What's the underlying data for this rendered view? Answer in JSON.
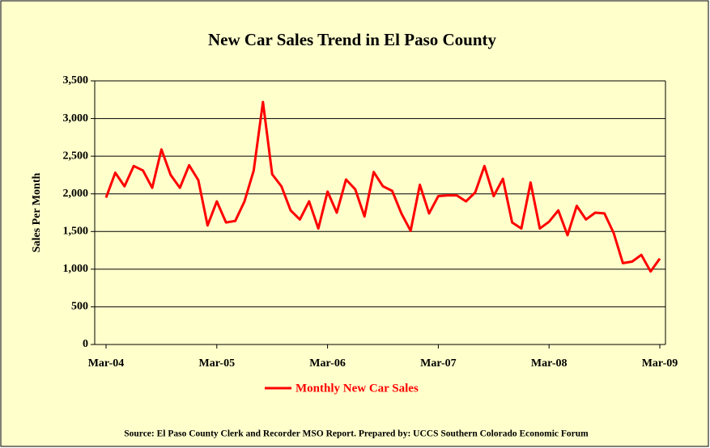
{
  "chart_data": {
    "type": "line",
    "title": "New Car Sales Trend in El Paso County",
    "y_label": "Sales Per Month",
    "source": "Source: El Paso County Clerk and Recorder MSO Report.  Prepared by: UCCS Southern Colorado Economic Forum",
    "categories": [
      "Mar-04",
      null,
      null,
      null,
      null,
      null,
      null,
      null,
      null,
      null,
      null,
      null,
      "Mar-05",
      null,
      null,
      null,
      null,
      null,
      null,
      null,
      null,
      null,
      null,
      null,
      "Mar-06",
      null,
      null,
      null,
      null,
      null,
      null,
      null,
      null,
      null,
      null,
      null,
      "Mar-07",
      null,
      null,
      null,
      null,
      null,
      null,
      null,
      null,
      null,
      null,
      null,
      "Mar-08",
      null,
      null,
      null,
      null,
      null,
      null,
      null,
      null,
      null,
      null,
      null,
      "Mar-09"
    ],
    "series": [
      {
        "name": "Monthly New Car Sales",
        "color": "#ff0000",
        "values": [
          1950,
          2280,
          2100,
          2370,
          2310,
          2080,
          2590,
          2250,
          2080,
          2380,
          2180,
          1580,
          1900,
          1620,
          1640,
          1900,
          2310,
          3220,
          2260,
          2100,
          1780,
          1660,
          1900,
          1540,
          2030,
          1750,
          2190,
          2060,
          1700,
          2290,
          2100,
          2040,
          1740,
          1510,
          2120,
          1740,
          1970,
          1980,
          1980,
          1900,
          2020,
          2370,
          1970,
          2200,
          1620,
          1540,
          2150,
          1540,
          1630,
          1780,
          1450,
          1840,
          1660,
          1750,
          1740,
          1480,
          1080,
          1100,
          1190,
          970,
          1140
        ]
      }
    ],
    "ylim": [
      0,
      3500
    ],
    "yticks": [
      0,
      500,
      {
        "value": 1000,
        "label": "1,000"
      },
      {
        "value": 1500,
        "label": "1,500"
      },
      {
        "value": 2000,
        "label": "2,000"
      },
      {
        "value": 2500,
        "label": "2,500"
      },
      {
        "value": 3000,
        "label": "3,000"
      },
      {
        "value": 3500,
        "label": "3,500"
      }
    ],
    "grid": true,
    "legend": "bottom"
  }
}
